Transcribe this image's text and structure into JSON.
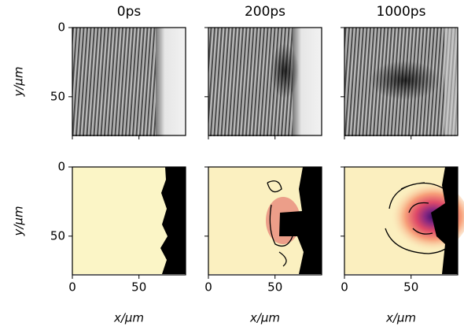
{
  "chart_data": [
    {
      "type": "image",
      "title": "0ps",
      "ylabel": "y/μm",
      "xlim": [
        0,
        85
      ],
      "ylim": [
        78,
        0
      ],
      "xticks": [
        0,
        50
      ],
      "yticks": [
        0,
        50
      ],
      "show_xticklabels": false,
      "show_yticklabels": true
    },
    {
      "type": "image",
      "title": "200ps",
      "xlim": [
        0,
        85
      ],
      "ylim": [
        78,
        0
      ],
      "xticks": [
        0,
        50
      ],
      "yticks": [
        0,
        50
      ],
      "show_xticklabels": false,
      "show_yticklabels": false
    },
    {
      "type": "image",
      "title": "1000ps",
      "xlim": [
        0,
        85
      ],
      "ylim": [
        78,
        0
      ],
      "xticks": [
        0,
        50
      ],
      "yticks": [
        0,
        50
      ],
      "show_xticklabels": false,
      "show_yticklabels": false
    },
    {
      "type": "image",
      "ylabel": "y/μm",
      "xlabel": "x/μm",
      "xlim": [
        0,
        85
      ],
      "ylim": [
        78,
        0
      ],
      "xticks": [
        0,
        50
      ],
      "yticks": [
        0,
        50
      ],
      "show_xticklabels": true,
      "show_yticklabels": true
    },
    {
      "type": "image",
      "xlabel": "x/μm",
      "xlim": [
        0,
        85
      ],
      "ylim": [
        78,
        0
      ],
      "xticks": [
        0,
        50
      ],
      "yticks": [
        0,
        50
      ],
      "show_xticklabels": true,
      "show_yticklabels": false
    },
    {
      "type": "image",
      "xlabel": "x/μm",
      "xlim": [
        0,
        85
      ],
      "ylim": [
        78,
        0
      ],
      "xticks": [
        0,
        50
      ],
      "yticks": [
        0,
        50
      ],
      "show_xticklabels": true,
      "show_yticklabels": false
    }
  ]
}
